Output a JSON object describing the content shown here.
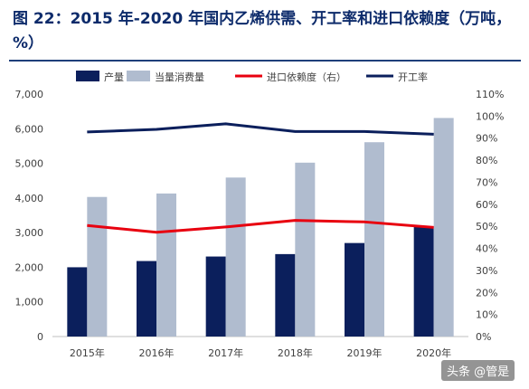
{
  "title": "图 22：2015 年-2020 年国内乙烯供需、开工率和进口依赖度（万吨，%）",
  "watermark": "头条 @管是",
  "colors": {
    "production": "#0b1f5c",
    "consumption": "#b0bccf",
    "import_dependence": "#e8000f",
    "utilization": "#0b1f5c",
    "title": "#0d2b6b"
  },
  "chart_data": {
    "type": "bar",
    "categories": [
      "2015年",
      "2016年",
      "2017年",
      "2018年",
      "2019年",
      "2020年"
    ],
    "series": [
      {
        "name": "产量",
        "type": "bar",
        "axis": "left",
        "values": [
          2000,
          2180,
          2310,
          2380,
          2700,
          3160
        ]
      },
      {
        "name": "当量消费量",
        "type": "bar",
        "axis": "left",
        "values": [
          4030,
          4130,
          4590,
          5020,
          5610,
          6310
        ]
      },
      {
        "name": "进口依赖度（右）",
        "type": "line",
        "axis": "right",
        "values": [
          50.4,
          47.3,
          49.7,
          52.7,
          52.0,
          49.5
        ]
      },
      {
        "name": "开工率",
        "type": "line",
        "axis": "right",
        "values": [
          92.8,
          94.0,
          96.5,
          93.0,
          93.0,
          91.8
        ]
      }
    ],
    "y_left": {
      "min": 0,
      "max": 7000,
      "ticks": [
        "0",
        "1,000",
        "2,000",
        "3,000",
        "4,000",
        "5,000",
        "6,000",
        "7,000"
      ]
    },
    "y_right": {
      "min": 0,
      "max": 110,
      "ticks": [
        "0%",
        "10%",
        "20%",
        "30%",
        "40%",
        "50%",
        "60%",
        "70%",
        "80%",
        "90%",
        "100%",
        "110%"
      ]
    },
    "legend": "top",
    "grid": false
  }
}
